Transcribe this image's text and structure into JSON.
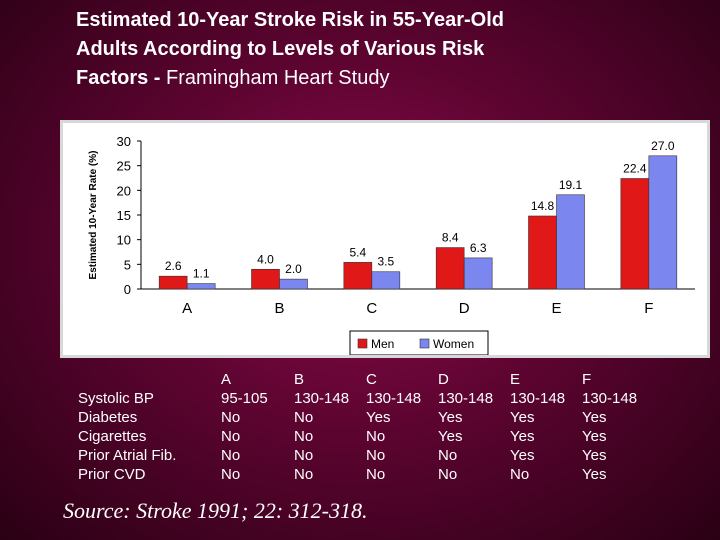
{
  "title_parts": [
    "Estimated 10-Year Stroke Risk in 55-Year-Old Adults According to Levels of Various Risk Factors - ",
    "Framingham Heart Study"
  ],
  "chart_data": {
    "type": "bar",
    "categories": [
      "A",
      "B",
      "C",
      "D",
      "E",
      "F"
    ],
    "series": [
      {
        "name": "Men",
        "color": "#e01818",
        "values": [
          2.6,
          4.0,
          5.4,
          8.4,
          14.8,
          22.4
        ],
        "labels": [
          "2.6",
          "4.0",
          "5.4",
          "8.4",
          "14.8",
          "22.4"
        ]
      },
      {
        "name": "Women",
        "color": "#7b86ee",
        "values": [
          1.1,
          2.0,
          3.5,
          6.3,
          19.1,
          27.0
        ],
        "labels": [
          "1.1",
          "2.0",
          "3.5",
          "6.3",
          "19.1",
          "27.0"
        ]
      }
    ],
    "ylabel": "Estimated 10-Year Rate (%)",
    "ylim": [
      0,
      30
    ],
    "yticks": [
      "0",
      "5",
      "10",
      "15",
      "20",
      "25",
      "30"
    ],
    "grid": false,
    "legend": "bottom"
  },
  "table": {
    "row_labels": [
      "Systolic BP",
      "Diabetes",
      "Cigarettes",
      "Prior Atrial Fib.",
      "Prior CVD"
    ],
    "columns": [
      {
        "header": "A",
        "values": [
          "95-105",
          "No",
          "No",
          "No",
          "No"
        ]
      },
      {
        "header": "B",
        "values": [
          "130-148",
          "No",
          "No",
          "No",
          "No"
        ]
      },
      {
        "header": "C",
        "values": [
          "130-148",
          "Yes",
          "No",
          "No",
          "No"
        ]
      },
      {
        "header": "D",
        "values": [
          "130-148",
          "Yes",
          "Yes",
          "No",
          "No"
        ]
      },
      {
        "header": "E",
        "values": [
          "130-148",
          "Yes",
          "Yes",
          "Yes",
          "No"
        ]
      },
      {
        "header": "F",
        "values": [
          "130-148",
          "Yes",
          "Yes",
          "Yes",
          "Yes"
        ]
      }
    ]
  },
  "source": "Source: Stroke 1991; 22: 312-318."
}
